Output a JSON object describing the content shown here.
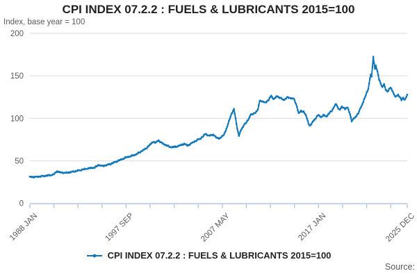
{
  "header": {
    "title": "CPI INDEX 07.2.2 : FUELS & LUBRICANTS 2015=100",
    "subtitle": "Index, base year = 100"
  },
  "legend": {
    "label": "CPI INDEX 07.2.2 : FUELS & LUBRICANTS 2015=100",
    "marker": "line-with-point-marker"
  },
  "footer": {
    "source_label": "Source:"
  },
  "colors": {
    "series_blue": "#1076ba",
    "axis_line": "#b4c5de",
    "gridline": "#d9d9d9",
    "muted_text": "#595959",
    "title_text": "#222222"
  },
  "chart_data": {
    "type": "line",
    "title": "CPI INDEX 07.2.2 : FUELS & LUBRICANTS 2015=100",
    "ylabel": "Index, base year = 100",
    "ylim": [
      0,
      200
    ],
    "yticks": [
      0,
      50,
      100,
      150,
      200
    ],
    "grid": "horizontal-only",
    "legend_position": "bottom-center",
    "x_start": "1988-01",
    "x_end": "2025-12",
    "x_unit": "month",
    "x_total_months": 455,
    "x_minor_tick_step_months": 29,
    "x_major_ticks": [
      {
        "month": 0,
        "label": "1988 JAN"
      },
      {
        "month": 116,
        "label": "1997 SEP"
      },
      {
        "month": 232,
        "label": "2007 MAY"
      },
      {
        "month": 348,
        "label": "2017 JAN"
      },
      {
        "month": 455,
        "label": "2025 DEC"
      }
    ],
    "series": [
      {
        "name": "CPI INDEX 07.2.2 : FUELS & LUBRICANTS 2015=100",
        "color": "#1076ba",
        "marker": "square",
        "sampling": "monthly, values below are [month_index_from_1988_JAN, index_value] anchor points read from the plot; intermediate months are linearly interpolated",
        "anchors_month_value": [
          [
            0,
            31
          ],
          [
            6,
            31
          ],
          [
            12,
            31.5
          ],
          [
            18,
            32.3
          ],
          [
            24,
            33
          ],
          [
            28,
            33.6
          ],
          [
            31,
            36
          ],
          [
            33,
            38
          ],
          [
            35,
            36.5
          ],
          [
            38,
            36.2
          ],
          [
            42,
            35.8
          ],
          [
            46,
            36.2
          ],
          [
            50,
            36.8
          ],
          [
            54,
            37.6
          ],
          [
            58,
            38.4
          ],
          [
            62,
            39.3
          ],
          [
            66,
            40.2
          ],
          [
            70,
            41
          ],
          [
            74,
            41.6
          ],
          [
            78,
            42
          ],
          [
            83,
            45.2
          ],
          [
            87,
            43.8
          ],
          [
            93,
            45
          ],
          [
            99,
            47
          ],
          [
            104,
            49
          ],
          [
            110,
            51.5
          ],
          [
            116,
            54
          ],
          [
            122,
            55.5
          ],
          [
            128,
            57.5
          ],
          [
            134,
            61
          ],
          [
            140,
            64.5
          ],
          [
            146,
            70
          ],
          [
            149,
            72.8
          ],
          [
            151,
            70.8
          ],
          [
            155,
            74.2
          ],
          [
            158,
            71.5
          ],
          [
            162,
            69.5
          ],
          [
            166,
            67.5
          ],
          [
            170,
            66
          ],
          [
            174,
            66.3
          ],
          [
            178,
            67
          ],
          [
            182,
            68.5
          ],
          [
            186,
            70
          ],
          [
            190,
            68
          ],
          [
            194,
            70
          ],
          [
            198,
            72.5
          ],
          [
            202,
            74.5
          ],
          [
            206,
            76.5
          ],
          [
            209,
            79
          ],
          [
            212,
            82
          ],
          [
            215,
            79.5
          ],
          [
            218,
            80
          ],
          [
            221,
            81
          ],
          [
            224,
            78
          ],
          [
            227,
            76.5
          ],
          [
            230,
            77
          ],
          [
            234,
            81
          ],
          [
            238,
            90
          ],
          [
            241,
            100
          ],
          [
            243,
            105
          ],
          [
            246,
            110.5
          ],
          [
            248,
            100
          ],
          [
            250,
            88
          ],
          [
            252,
            79.5
          ],
          [
            255,
            87
          ],
          [
            258,
            92
          ],
          [
            261,
            95
          ],
          [
            264,
            100
          ],
          [
            266,
            104
          ],
          [
            269,
            105
          ],
          [
            272,
            107
          ],
          [
            275,
            110
          ],
          [
            277,
            121
          ],
          [
            280,
            120
          ],
          [
            283,
            118.5
          ],
          [
            286,
            120
          ],
          [
            288,
            122
          ],
          [
            291,
            126.5
          ],
          [
            294,
            122.5
          ],
          [
            298,
            126
          ],
          [
            302,
            124
          ],
          [
            306,
            121.5
          ],
          [
            310,
            124.5
          ],
          [
            314,
            124
          ],
          [
            318,
            123
          ],
          [
            321,
            117
          ],
          [
            324,
            106
          ],
          [
            327,
            108.5
          ],
          [
            330,
            108
          ],
          [
            333,
            103
          ],
          [
            336,
            94
          ],
          [
            338,
            91
          ],
          [
            341,
            96
          ],
          [
            344,
            99.5
          ],
          [
            348,
            104
          ],
          [
            351,
            101.5
          ],
          [
            354,
            103.5
          ],
          [
            358,
            102.5
          ],
          [
            360,
            105
          ],
          [
            364,
            109
          ],
          [
            369,
            117
          ],
          [
            371,
            113
          ],
          [
            374,
            110
          ],
          [
            376,
            113.5
          ],
          [
            380,
            111.5
          ],
          [
            383,
            112.5
          ],
          [
            386,
            105
          ],
          [
            388,
            97
          ],
          [
            390,
            99
          ],
          [
            392,
            101
          ],
          [
            396,
            106
          ],
          [
            400,
            115
          ],
          [
            403,
            122
          ],
          [
            405,
            127
          ],
          [
            408,
            135
          ],
          [
            410,
            147
          ],
          [
            411,
            151
          ],
          [
            412,
            149
          ],
          [
            414,
            172
          ],
          [
            415,
            165
          ],
          [
            416,
            159
          ],
          [
            417,
            162
          ],
          [
            419,
            155
          ],
          [
            421,
            146
          ],
          [
            423,
            141
          ],
          [
            425,
            136.5
          ],
          [
            427,
            140
          ],
          [
            429,
            134
          ],
          [
            431,
            131.5
          ],
          [
            433,
            134
          ],
          [
            435,
            136
          ],
          [
            437,
            133
          ],
          [
            439,
            128
          ],
          [
            441,
            125
          ],
          [
            444,
            128
          ],
          [
            446,
            125
          ],
          [
            448,
            121.5
          ],
          [
            450,
            124
          ],
          [
            452,
            122
          ],
          [
            453,
            124
          ],
          [
            455,
            127
          ]
        ]
      }
    ]
  }
}
